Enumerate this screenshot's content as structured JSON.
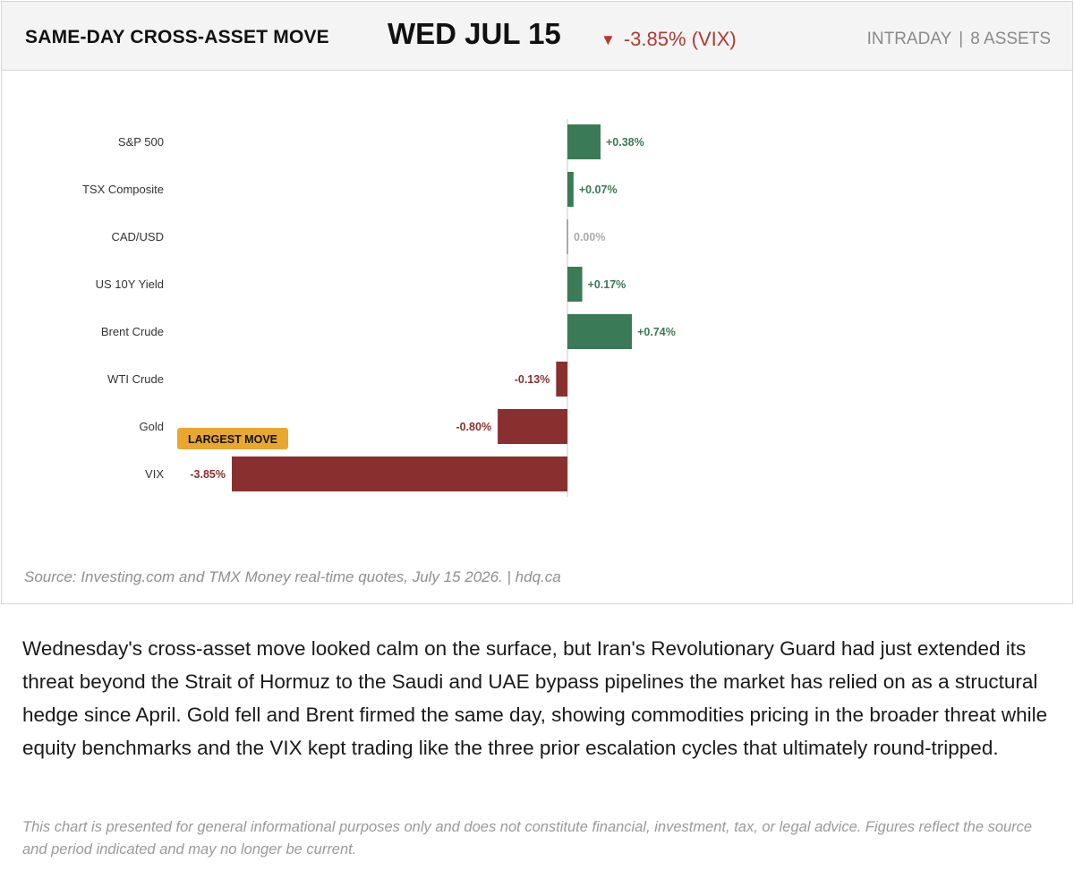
{
  "header": {
    "label": "SAME-DAY CROSS-ASSET MOVE",
    "date": "WED JUL 15",
    "move_glyph": "▼",
    "move_text": "-3.85% (VIX)",
    "meta_left": "INTRADAY",
    "meta_sep": "|",
    "meta_right": "8 ASSETS"
  },
  "colors": {
    "positive": "#3a7a56",
    "negative": "#8a2f2f",
    "neutral": "#aaaaaa",
    "badge": "#e8a82e",
    "header_move": "#b03a32"
  },
  "chart_data": {
    "type": "bar",
    "orientation": "horizontal",
    "categories": [
      "S&P 500",
      "TSX Composite",
      "CAD/USD",
      "US 10Y Yield",
      "Brent Crude",
      "WTI Crude",
      "Gold",
      "VIX"
    ],
    "values": [
      0.38,
      0.07,
      0.0,
      0.17,
      0.74,
      -0.13,
      -0.8,
      -3.85
    ],
    "value_labels": [
      "+0.38%",
      "+0.07%",
      "0.00%",
      "+0.17%",
      "+0.74%",
      "-0.13%",
      "-0.80%",
      "-3.85%"
    ],
    "highlight": {
      "category": "VIX",
      "badge": "LARGEST MOVE"
    },
    "xlim": [
      -4.6,
      5.8
    ],
    "grid": false
  },
  "source": "Source: Investing.com and TMX Money real-time quotes, July 15 2026.  |  hdq.ca",
  "body_text": "Wednesday's cross-asset move looked calm on the surface, but Iran's Revolutionary Guard had just extended its threat beyond the Strait of Hormuz to the Saudi and UAE bypass pipelines the market has relied on as a structural hedge since April. Gold fell and Brent firmed the same day, showing commodities pricing in the broader threat while equity benchmarks and the VIX kept trading like the three prior escalation cycles that ultimately round-tripped.",
  "disclaimer": "This chart is presented for general informational purposes only and does not constitute financial, investment, tax, or legal advice. Figures reflect the source and period indicated and may no longer be current."
}
